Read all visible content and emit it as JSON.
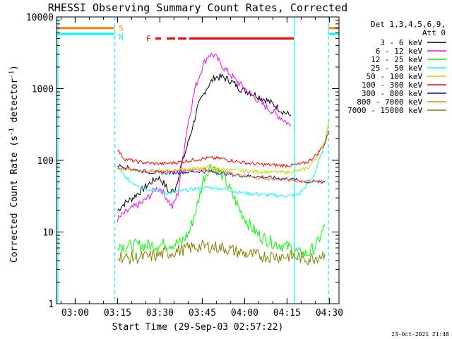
{
  "chart_data": {
    "type": "line",
    "title": "RHESSI Observing Summary Count Rates, Corrected",
    "xlabel": "Start Time (29-Sep-03 02:57:22)",
    "ylabel": "Corrected Count Rate (s⁻¹ detector⁻¹)",
    "ylabel_main": "Corrected Count Rate (s",
    "ylabel_sup1": "-1",
    "ylabel_mid": " detector",
    "ylabel_sup2": "-1",
    "ylabel_end": ")",
    "yscale": "log",
    "ylim": [
      1,
      10000
    ],
    "xlim_minutes": [
      -4,
      96
    ],
    "x_unit": "minutes after 02:57:22 approx (tick 03:00 = 2.6)",
    "x_ticks": [
      {
        "label": "03:00",
        "min": 2.6
      },
      {
        "label": "03:15",
        "min": 17.6
      },
      {
        "label": "03:30",
        "min": 32.6
      },
      {
        "label": "03:45",
        "min": 47.6
      },
      {
        "label": "04:00",
        "min": 62.6
      },
      {
        "label": "04:15",
        "min": 77.6
      },
      {
        "label": "04:30",
        "min": 92.6
      }
    ],
    "y_ticks": [
      {
        "label": "1",
        "value": 1
      },
      {
        "label": "10",
        "value": 10
      },
      {
        "label": "100",
        "value": 100
      },
      {
        "label": "1000",
        "value": 1000
      },
      {
        "label": "10000",
        "value": 10000
      }
    ],
    "legend_header": [
      "Det 1,3,4,5,6,9,",
      "Att 0"
    ],
    "series": [
      {
        "name": "3 - 6 keV",
        "color": "#000000",
        "points": [
          [
            17.6,
            20
          ],
          [
            20,
            25
          ],
          [
            23,
            30
          ],
          [
            26,
            38
          ],
          [
            29,
            48
          ],
          [
            32,
            58
          ],
          [
            34,
            48
          ],
          [
            36,
            35
          ],
          [
            38,
            40
          ],
          [
            40,
            80
          ],
          [
            43,
            200
          ],
          [
            46,
            550
          ],
          [
            49,
            1000
          ],
          [
            52,
            1450
          ],
          [
            55,
            1450
          ],
          [
            58,
            1250
          ],
          [
            61,
            1000
          ],
          [
            64,
            900
          ],
          [
            67,
            800
          ],
          [
            70,
            700
          ],
          [
            73,
            600
          ],
          [
            76,
            480
          ],
          [
            79,
            420
          ]
        ]
      },
      {
        "name": "6 - 12 keV",
        "color": "#ff00ff",
        "points": [
          [
            17.6,
            15
          ],
          [
            20,
            18
          ],
          [
            23,
            22
          ],
          [
            26,
            25
          ],
          [
            29,
            32
          ],
          [
            31,
            40
          ],
          [
            33,
            40
          ],
          [
            35,
            30
          ],
          [
            37,
            22
          ],
          [
            39,
            35
          ],
          [
            42,
            250
          ],
          [
            45,
            1000
          ],
          [
            48,
            2200
          ],
          [
            50,
            3000
          ],
          [
            52,
            2900
          ],
          [
            55,
            2000
          ],
          [
            58,
            1500
          ],
          [
            61,
            1150
          ],
          [
            64,
            900
          ],
          [
            67,
            700
          ],
          [
            70,
            560
          ],
          [
            73,
            460
          ],
          [
            76,
            380
          ],
          [
            79,
            300
          ]
        ]
      },
      {
        "name": "12 - 25 keV",
        "color": "#00ff00",
        "points": [
          [
            17.6,
            7
          ],
          [
            20,
            6.3
          ],
          [
            25,
            6.5
          ],
          [
            30,
            6.5
          ],
          [
            35,
            6.8
          ],
          [
            40,
            7
          ],
          [
            43,
            10
          ],
          [
            46,
            25
          ],
          [
            48,
            55
          ],
          [
            50,
            80
          ],
          [
            52,
            80
          ],
          [
            55,
            60
          ],
          [
            58,
            35
          ],
          [
            61,
            20
          ],
          [
            64,
            13
          ],
          [
            67,
            9.5
          ],
          [
            70,
            8
          ],
          [
            73,
            7
          ],
          [
            76,
            6.5
          ],
          [
            79,
            6
          ],
          [
            82,
            5
          ],
          [
            85,
            5
          ],
          [
            88,
            6.5
          ],
          [
            91,
            12
          ]
        ]
      },
      {
        "name": "25 - 50 keV",
        "color": "#00ffff",
        "points": [
          [
            17.6,
            80
          ],
          [
            20,
            60
          ],
          [
            23,
            48
          ],
          [
            26,
            43
          ],
          [
            30,
            38
          ],
          [
            35,
            35
          ],
          [
            40,
            37
          ],
          [
            45,
            40
          ],
          [
            50,
            42
          ],
          [
            55,
            40
          ],
          [
            60,
            36
          ],
          [
            65,
            34
          ],
          [
            70,
            33
          ],
          [
            75,
            32
          ],
          [
            79,
            32
          ],
          [
            82,
            34
          ],
          [
            84,
            42
          ],
          [
            87,
            60
          ],
          [
            90,
            130
          ],
          [
            92,
            260
          ]
        ]
      },
      {
        "name": "50 - 100 keV",
        "color": "#d0d000",
        "points": [
          [
            17.6,
            80
          ],
          [
            20,
            77
          ],
          [
            25,
            72
          ],
          [
            30,
            70
          ],
          [
            35,
            70
          ],
          [
            40,
            74
          ],
          [
            45,
            78
          ],
          [
            50,
            80
          ],
          [
            55,
            75
          ],
          [
            60,
            72
          ],
          [
            65,
            70
          ],
          [
            70,
            69
          ],
          [
            75,
            68
          ],
          [
            79,
            68
          ],
          [
            82,
            72
          ],
          [
            85,
            78
          ],
          [
            88,
            110
          ],
          [
            91,
            180
          ],
          [
            92.5,
            380
          ]
        ]
      },
      {
        "name": "100 - 300 keV",
        "color": "#ff0000",
        "points": [
          [
            17.6,
            140
          ],
          [
            20,
            105
          ],
          [
            25,
            95
          ],
          [
            30,
            90
          ],
          [
            35,
            90
          ],
          [
            40,
            95
          ],
          [
            45,
            102
          ],
          [
            50,
            108
          ],
          [
            55,
            105
          ],
          [
            60,
            96
          ],
          [
            65,
            90
          ],
          [
            70,
            87
          ],
          [
            75,
            85
          ],
          [
            79,
            85
          ],
          [
            82,
            88
          ],
          [
            85,
            95
          ],
          [
            88,
            120
          ],
          [
            91,
            170
          ],
          [
            92.5,
            260
          ]
        ]
      },
      {
        "name": "300 - 800 keV",
        "color": "#0000ff",
        "points": [
          [
            17.6,
            85
          ],
          [
            20,
            82
          ],
          [
            25,
            72
          ],
          [
            30,
            68
          ],
          [
            35,
            67
          ],
          [
            40,
            68
          ],
          [
            45,
            70
          ],
          [
            50,
            70
          ],
          [
            55,
            66
          ],
          [
            60,
            62
          ],
          [
            65,
            60
          ],
          [
            70,
            58
          ],
          [
            75,
            56
          ],
          [
            79,
            55
          ],
          [
            82,
            52
          ],
          [
            85,
            50
          ],
          [
            88,
            50
          ],
          [
            91,
            50
          ]
        ]
      },
      {
        "name": "800 - 7000 keV",
        "color": "#ff8000",
        "points": [
          [
            17.6,
            78
          ],
          [
            20,
            76
          ],
          [
            25,
            72
          ],
          [
            30,
            70
          ],
          [
            35,
            70
          ],
          [
            40,
            72
          ],
          [
            45,
            75
          ],
          [
            50,
            74
          ],
          [
            55,
            68
          ],
          [
            60,
            62
          ],
          [
            65,
            58
          ],
          [
            70,
            56
          ],
          [
            75,
            54
          ],
          [
            79,
            53
          ],
          [
            82,
            52
          ],
          [
            85,
            51
          ],
          [
            88,
            51
          ],
          [
            91,
            51
          ]
        ]
      },
      {
        "name": "7000 - 15000 keV",
        "color": "#808000",
        "points": [
          [
            17.6,
            5
          ],
          [
            20,
            4.3
          ],
          [
            25,
            4.4
          ],
          [
            30,
            4.6
          ],
          [
            35,
            5
          ],
          [
            40,
            5.6
          ],
          [
            45,
            6.2
          ],
          [
            50,
            6.3
          ],
          [
            55,
            6
          ],
          [
            60,
            5.3
          ],
          [
            65,
            4.8
          ],
          [
            70,
            4.6
          ],
          [
            75,
            4.6
          ],
          [
            79,
            4.6
          ],
          [
            82,
            4.4
          ],
          [
            85,
            4.2
          ],
          [
            88,
            4.5
          ],
          [
            91,
            5
          ]
        ]
      }
    ],
    "flags": [
      {
        "label": "S",
        "color": "#ff8000",
        "value": 7000,
        "segments": [
          [
            -4,
            16.5
          ],
          [
            92.3,
            96
          ]
        ]
      },
      {
        "label": "N",
        "color": "#00ffff",
        "value": 5800,
        "segments": [
          [
            -4,
            16.5
          ],
          [
            92.3,
            96
          ]
        ]
      },
      {
        "label": "F",
        "color": "#ff0000",
        "value": 5000,
        "segments": [
          [
            31,
            33
          ],
          [
            35,
            38
          ],
          [
            39,
            42
          ],
          [
            43,
            80
          ]
        ]
      }
    ],
    "vlines": [
      {
        "min": 16.6,
        "color": "#00ffff",
        "style": "dashed"
      },
      {
        "min": 80.2,
        "color": "#00ffff",
        "style": "solid"
      },
      {
        "min": 92.3,
        "color": "#00ffff",
        "style": "dashed"
      },
      {
        "min": -3.5,
        "color": "#00ffff",
        "style": "solid"
      }
    ]
  },
  "footer": {
    "timestamp": "23-Oct-2021 21:48"
  }
}
